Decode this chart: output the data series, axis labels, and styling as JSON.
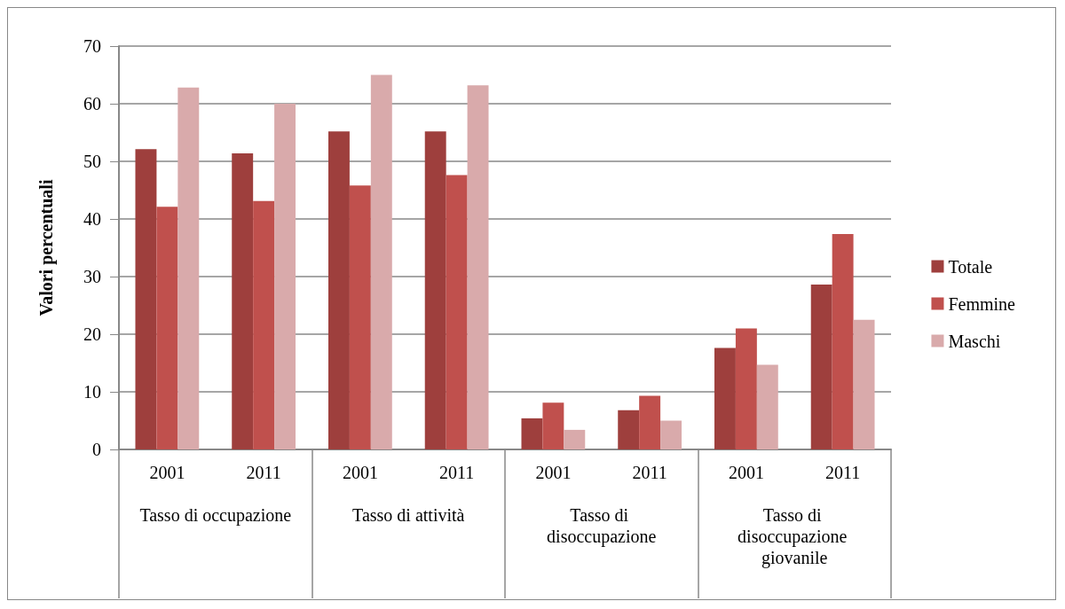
{
  "chart_data": {
    "type": "bar",
    "ylabel": "Valori percentuali",
    "categories": [
      "2001",
      "2011",
      "2001",
      "2011",
      "2001",
      "2011",
      "2001",
      "2011"
    ],
    "annotations": [
      "Tasso di occupazione",
      "Tasso di attività",
      "Tasso di disoccupazione",
      "Tasso di disoccupazione giovanile"
    ],
    "series": [
      {
        "name": "Totale",
        "color": "#9e3f3d",
        "values": [
          52.1,
          51.4,
          55.2,
          55.2,
          5.4,
          6.8,
          17.6,
          28.6
        ]
      },
      {
        "name": "Femmine",
        "color": "#c0504d",
        "values": [
          42.1,
          43.1,
          45.8,
          47.6,
          8.1,
          9.3,
          21.0,
          37.4
        ]
      },
      {
        "name": "Maschi",
        "color": "#d9aaab",
        "values": [
          62.8,
          60.0,
          65.0,
          63.2,
          3.4,
          5.0,
          14.7,
          22.5
        ]
      }
    ],
    "ylim": [
      0,
      70
    ],
    "yticks": [
      0,
      10,
      20,
      30,
      40,
      50,
      60,
      70
    ],
    "grid": true,
    "legend": "right"
  }
}
